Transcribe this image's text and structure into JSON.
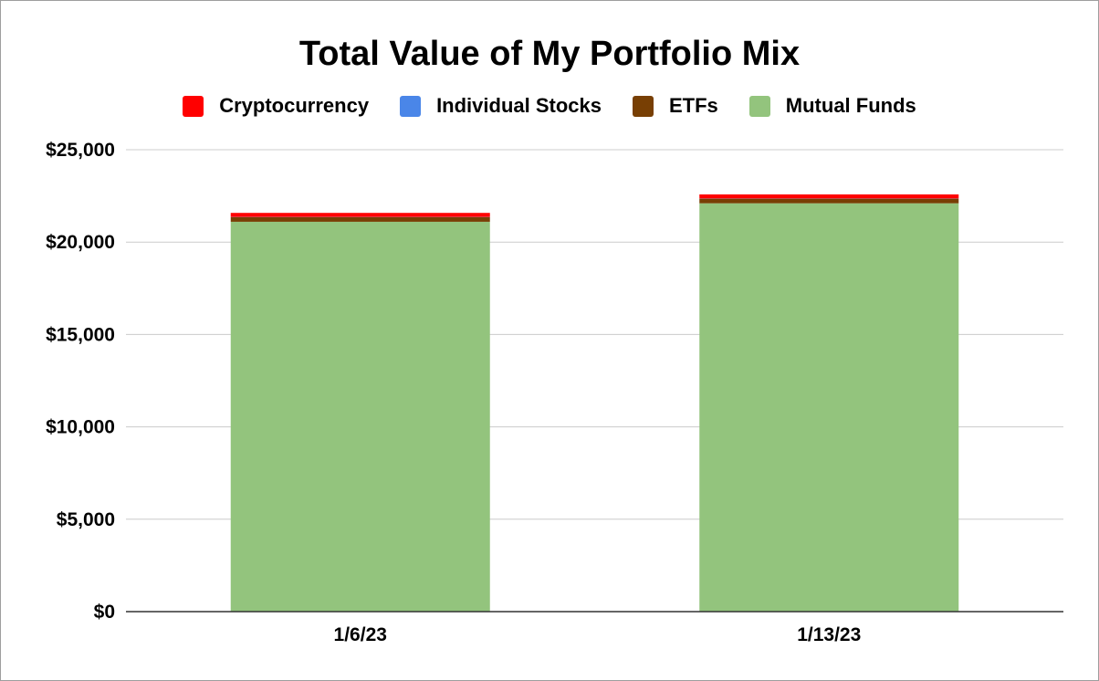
{
  "chart_data": {
    "type": "bar",
    "stacked": true,
    "title": "Total Value of My Portfolio Mix",
    "xlabel": "",
    "ylabel": "",
    "categories": [
      "1/6/23",
      "1/13/23"
    ],
    "series": [
      {
        "name": "Mutual Funds",
        "color": "#93c47d",
        "values": [
          21100,
          22100
        ]
      },
      {
        "name": "ETFs",
        "color": "#783f04",
        "values": [
          250,
          250
        ]
      },
      {
        "name": "Individual Stocks",
        "color": "#4a86e8",
        "values": [
          10,
          10
        ]
      },
      {
        "name": "Cryptocurrency",
        "color": "#ff0000",
        "values": [
          220,
          220
        ]
      }
    ],
    "legend_order": [
      "Cryptocurrency",
      "Individual Stocks",
      "ETFs",
      "Mutual Funds"
    ],
    "legend_position": "top",
    "ylim": [
      0,
      25000
    ],
    "yticks": [
      0,
      5000,
      10000,
      15000,
      20000,
      25000
    ],
    "ytick_labels": [
      "$0",
      "$5,000",
      "$10,000",
      "$15,000",
      "$20,000",
      "$25,000"
    ],
    "grid": true
  }
}
